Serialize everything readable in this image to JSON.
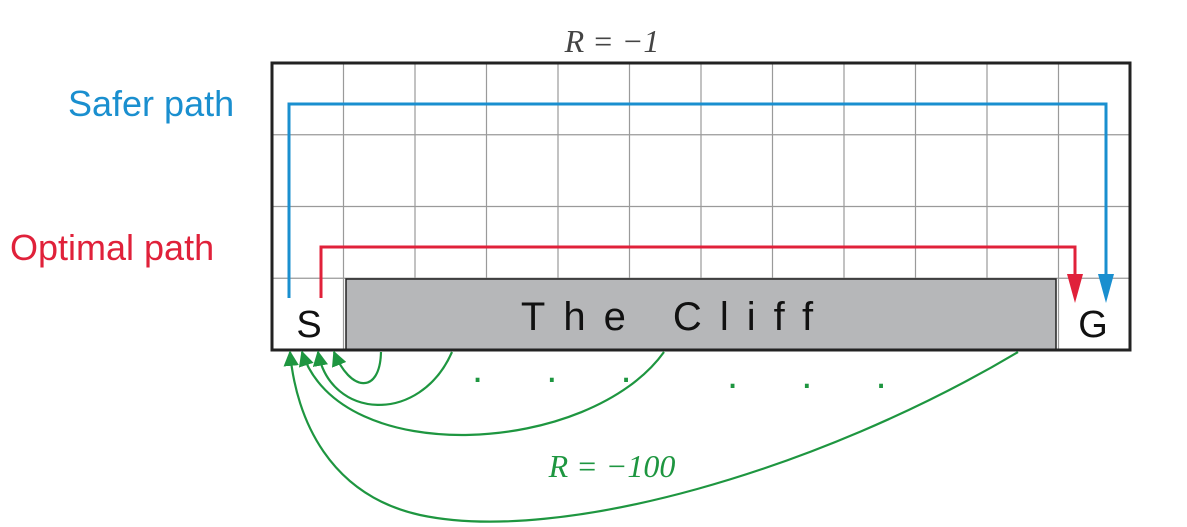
{
  "title": "R = −1",
  "paths": {
    "safer": {
      "label": "Safer path",
      "color": "#1a8fcf"
    },
    "optimal": {
      "label": "Optimal path",
      "color": "#e0213a"
    }
  },
  "grid": {
    "columns": 12,
    "rows": 4
  },
  "cells": {
    "start_label": "S",
    "goal_label": "G",
    "cliff_label": "The Cliff",
    "cliff_color": "#b6b7b9"
  },
  "fall": {
    "reward_label": "R = −100",
    "color": "#1e9640",
    "ellipsis_left": ". . .",
    "ellipsis_right": ". . ."
  },
  "colors": {
    "grid_border": "#222222",
    "grid_line": "#9a9a9a"
  }
}
